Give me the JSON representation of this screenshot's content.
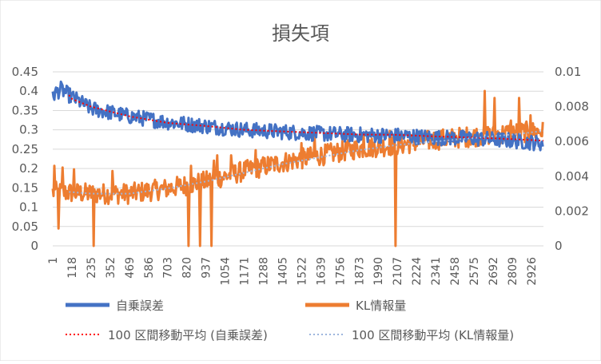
{
  "chart_data": {
    "type": "line",
    "title": "損失項",
    "x_tick_labels": [
      "1",
      "118",
      "235",
      "352",
      "469",
      "586",
      "703",
      "820",
      "937",
      "1054",
      "1171",
      "1288",
      "1405",
      "1522",
      "1639",
      "1756",
      "1873",
      "1990",
      "2107",
      "2224",
      "2341",
      "2458",
      "2575",
      "2692",
      "2809",
      "2926"
    ],
    "x_range": [
      1,
      3000
    ],
    "y_left": {
      "lim": [
        0,
        0.45
      ],
      "ticks": [
        "0",
        "0.05",
        "0.1",
        "0.15",
        "0.2",
        "0.25",
        "0.3",
        "0.35",
        "0.4",
        "0.45"
      ]
    },
    "y_right": {
      "lim": [
        0,
        0.01
      ],
      "ticks": [
        "0",
        "0.002",
        "0.004",
        "0.006",
        "0.008",
        "0.01"
      ]
    },
    "grid": "horizontal",
    "legend_position": "bottom",
    "series": [
      {
        "name": "自乗誤差",
        "axis": "left",
        "style": "line",
        "color": "#4472C4",
        "trend_keypoints": {
          "x": [
            1,
            50,
            118,
            235,
            469,
            703,
            937,
            1171,
            1405,
            1639,
            1873,
            2107,
            2341,
            2575,
            2809,
            3000
          ],
          "y": [
            0.39,
            0.405,
            0.385,
            0.355,
            0.335,
            0.32,
            0.31,
            0.3,
            0.295,
            0.29,
            0.287,
            0.285,
            0.28,
            0.278,
            0.272,
            0.265
          ]
        },
        "noise_amplitude": 0.02
      },
      {
        "name": "KL情報量",
        "axis": "right",
        "style": "line",
        "color": "#ED7D31",
        "trend_keypoints": {
          "x": [
            1,
            235,
            469,
            703,
            937,
            1171,
            1405,
            1639,
            1873,
            2107,
            2341,
            2575,
            2809,
            3000
          ],
          "y": [
            0.0031,
            0.003,
            0.003,
            0.0033,
            0.0037,
            0.0043,
            0.0048,
            0.0052,
            0.0056,
            0.0058,
            0.0061,
            0.0063,
            0.0065,
            0.0066
          ]
        },
        "noise_amplitude": 0.0006,
        "spikes": [
          {
            "x": 10,
            "y": 0.0046
          },
          {
            "x": 35,
            "y": 0.001
          },
          {
            "x": 60,
            "y": 0.0045
          },
          {
            "x": 130,
            "y": 0.0044
          },
          {
            "x": 250,
            "y": 0.0
          },
          {
            "x": 365,
            "y": 0.0043
          },
          {
            "x": 830,
            "y": 0.0
          },
          {
            "x": 845,
            "y": 0.0046
          },
          {
            "x": 900,
            "y": 0.0
          },
          {
            "x": 970,
            "y": 0.0
          },
          {
            "x": 985,
            "y": 0.0049
          },
          {
            "x": 1005,
            "y": 0.0052
          },
          {
            "x": 1090,
            "y": 0.0052
          },
          {
            "x": 1240,
            "y": 0.0055
          },
          {
            "x": 1520,
            "y": 0.0059
          },
          {
            "x": 1600,
            "y": 0.0064
          },
          {
            "x": 1900,
            "y": 0.0064
          },
          {
            "x": 2062,
            "y": 0.0066
          },
          {
            "x": 2095,
            "y": 0.0
          },
          {
            "x": 2490,
            "y": 0.0066
          },
          {
            "x": 2640,
            "y": 0.0089
          },
          {
            "x": 2700,
            "y": 0.0085
          },
          {
            "x": 2800,
            "y": 0.0072
          },
          {
            "x": 2850,
            "y": 0.0085
          },
          {
            "x": 2920,
            "y": 0.0075
          }
        ]
      },
      {
        "name": "100 区間移動平均 (自乗誤差)",
        "axis": "left",
        "style": "dotted",
        "color": "#FF0000",
        "trend_keypoints": {
          "x": [
            100,
            118,
            235,
            469,
            703,
            937,
            1171,
            1405,
            1639,
            1873,
            2107,
            2341,
            2575,
            2809,
            3000
          ],
          "y": [
            0.39,
            0.38,
            0.36,
            0.335,
            0.318,
            0.31,
            0.3,
            0.296,
            0.292,
            0.288,
            0.287,
            0.283,
            0.28,
            0.276,
            0.272
          ]
        }
      },
      {
        "name": "100 区間移動平均 (KL情報量)",
        "axis": "right",
        "style": "dotted",
        "color": "#9DB5DD",
        "trend_keypoints": {
          "x": [
            100,
            235,
            469,
            703,
            937,
            1171,
            1405,
            1639,
            1873,
            2107,
            2341,
            2575,
            2809,
            3000
          ],
          "y": [
            0.0031,
            0.003,
            0.003,
            0.0033,
            0.0037,
            0.0042,
            0.0047,
            0.0051,
            0.0055,
            0.0058,
            0.006,
            0.0062,
            0.0064,
            0.0066
          ]
        }
      }
    ]
  }
}
